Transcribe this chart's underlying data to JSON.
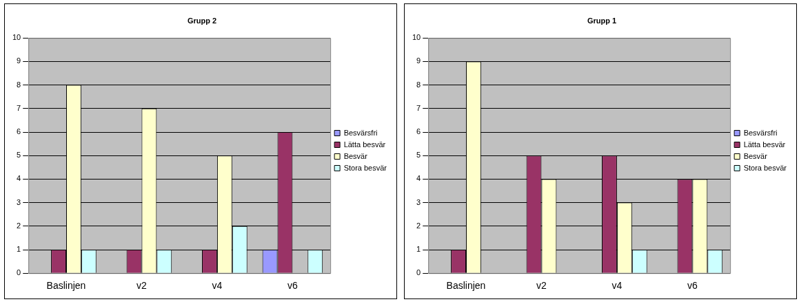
{
  "chart_data": [
    {
      "type": "bar",
      "title": "Grupp 2",
      "categories": [
        "Baslinjen",
        "v2",
        "v4",
        "v6"
      ],
      "series": [
        {
          "name": "Besvärsfri",
          "color": "#9999ff",
          "values": [
            0,
            0,
            0,
            1
          ]
        },
        {
          "name": "Lätta besvär",
          "color": "#993366",
          "values": [
            1,
            1,
            1,
            6
          ]
        },
        {
          "name": "Besvär",
          "color": "#ffffcc",
          "values": [
            8,
            7,
            5,
            0
          ]
        },
        {
          "name": "Stora besvär",
          "color": "#ccffff",
          "values": [
            1,
            1,
            2,
            1
          ]
        }
      ],
      "ylim": [
        0,
        10
      ],
      "yticks": [
        0,
        1,
        2,
        3,
        4,
        5,
        6,
        7,
        8,
        9,
        10
      ],
      "grid": "y",
      "legend": "right"
    },
    {
      "type": "bar",
      "title": "Grupp 1",
      "categories": [
        "Baslinjen",
        "v2",
        "v4",
        "v6"
      ],
      "series": [
        {
          "name": "Besvärsfri",
          "color": "#9999ff",
          "values": [
            0,
            0,
            0,
            0
          ]
        },
        {
          "name": "Lätta besvär",
          "color": "#993366",
          "values": [
            1,
            5,
            5,
            4
          ]
        },
        {
          "name": "Besvär",
          "color": "#ffffcc",
          "values": [
            9,
            4,
            3,
            4
          ]
        },
        {
          "name": "Stora besvär",
          "color": "#ccffff",
          "values": [
            0,
            0,
            1,
            1
          ]
        }
      ],
      "ylim": [
        0,
        10
      ],
      "yticks": [
        0,
        1,
        2,
        3,
        4,
        5,
        6,
        7,
        8,
        9,
        10
      ],
      "grid": "y",
      "legend": "right"
    }
  ]
}
